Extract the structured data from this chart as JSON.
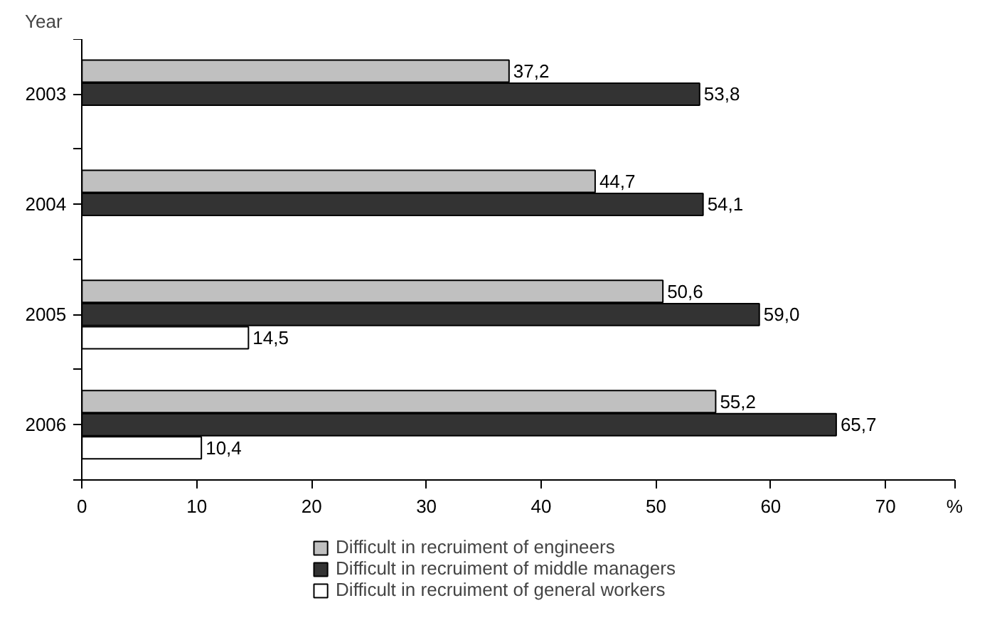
{
  "chart_data": {
    "type": "bar",
    "orientation": "horizontal",
    "ylabel": "Year",
    "xlabel": "%",
    "categories": [
      "2003",
      "2004",
      "2005",
      "2006"
    ],
    "series": [
      {
        "name": "Difficult in recruiment of engineers",
        "color": "#c0c0c0",
        "values": [
          37.2,
          44.7,
          50.6,
          55.2
        ],
        "value_labels": [
          "37,2",
          "44,7",
          "50,6",
          "55,2"
        ]
      },
      {
        "name": "Difficult in recruiment of middle managers",
        "color": "#333333",
        "values": [
          53.8,
          54.1,
          59.0,
          65.7
        ],
        "value_labels": [
          "53,8",
          "54,1",
          "59,0",
          "65,7"
        ]
      },
      {
        "name": "Difficult in recruiment of general workers",
        "color": "#ffffff",
        "values": [
          null,
          null,
          14.5,
          10.4
        ],
        "value_labels": [
          null,
          null,
          "14,5",
          "10,4"
        ]
      }
    ],
    "xlim": [
      0,
      76
    ],
    "xticks": [
      0,
      10,
      20,
      30,
      40,
      50,
      60,
      70
    ],
    "grid": false,
    "legend": "bottom"
  }
}
